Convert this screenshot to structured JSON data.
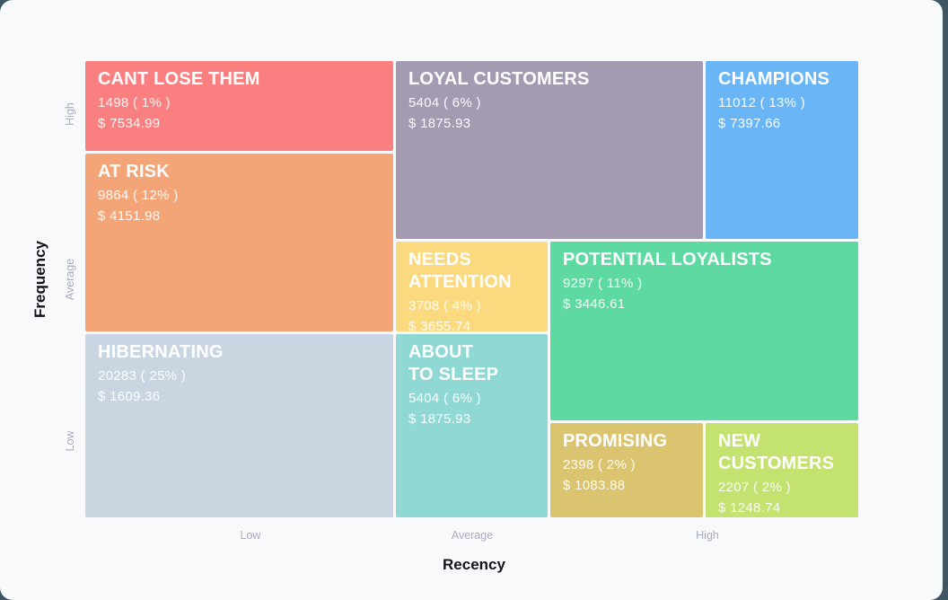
{
  "page": {
    "background_color": "#3E5763",
    "card_color": "#F8F9FB",
    "tick_color": "#A8ADBF",
    "axis_title_color": "#14141F"
  },
  "chart_data": {
    "type": "treemap",
    "xlabel": "Recency",
    "ylabel": "Frequency",
    "x_ticks": [
      "Low",
      "Average",
      "High"
    ],
    "y_ticks": [
      "High",
      "Average",
      "Low"
    ],
    "grid": false,
    "segments": [
      {
        "id": "cant-lose-them",
        "title_lines": [
          "CANT LOSE THEM"
        ],
        "count": 1498,
        "percent": "1%",
        "count_label": "1498 ( 1% )",
        "monetary": 7534.99,
        "monetary_label": "$ 7534.99",
        "color": "#F97F80",
        "recency": "Low",
        "frequency": "High",
        "grid": {
          "col": [
            1,
            2
          ],
          "row": [
            1,
            2
          ]
        }
      },
      {
        "id": "loyal-customers",
        "title_lines": [
          "LOYAL CUSTOMERS"
        ],
        "count": 5404,
        "percent": "6%",
        "count_label": "5404 ( 6% )",
        "monetary": 1875.93,
        "monetary_label": "$ 1875.93",
        "color": "#A49BB3",
        "recency": "Average",
        "frequency": "High",
        "grid": {
          "col": [
            2,
            4
          ],
          "row": [
            1,
            3
          ]
        }
      },
      {
        "id": "champions",
        "title_lines": [
          "CHAMPIONS"
        ],
        "count": 11012,
        "percent": "13%",
        "count_label": "11012 ( 13% )",
        "monetary": 7397.66,
        "monetary_label": "$ 7397.66",
        "color": "#6AB5F5",
        "recency": "High",
        "frequency": "High",
        "grid": {
          "col": [
            4,
            5
          ],
          "row": [
            1,
            3
          ]
        }
      },
      {
        "id": "at-risk",
        "title_lines": [
          "AT RISK"
        ],
        "count": 9864,
        "percent": "12%",
        "count_label": "9864 ( 12% )",
        "monetary": 4151.98,
        "monetary_label": "$ 4151.98",
        "color": "#F4A578",
        "recency": "Low",
        "frequency": "Average",
        "grid": {
          "col": [
            1,
            2
          ],
          "row": [
            2,
            4
          ]
        }
      },
      {
        "id": "needs-attention",
        "title_lines": [
          "NEEDS",
          "ATTENTION"
        ],
        "count": 3708,
        "percent": "4%",
        "count_label": "3708 ( 4% )",
        "monetary": 3655.74,
        "monetary_label": "$ 3655.74",
        "color": "#FBDA7F",
        "recency": "Average",
        "frequency": "Average",
        "grid": {
          "col": [
            2,
            3
          ],
          "row": [
            3,
            4
          ]
        }
      },
      {
        "id": "potential-loyalists",
        "title_lines": [
          "POTENTIAL LOYALISTS"
        ],
        "count": 9297,
        "percent": "11%",
        "count_label": "9297 ( 11% )",
        "monetary": 3446.61,
        "monetary_label": "$ 3446.61",
        "color": "#5DD9A1",
        "recency": "High",
        "frequency": "Average",
        "grid": {
          "col": [
            3,
            5
          ],
          "row": [
            3,
            5
          ]
        }
      },
      {
        "id": "hibernating",
        "title_lines": [
          "HIBERNATING"
        ],
        "count": 20283,
        "percent": "25%",
        "count_label": "20283 ( 25% )",
        "monetary": 1609.36,
        "monetary_label": "$ 1609.36",
        "color": "#CAD5E2",
        "recency": "Low",
        "frequency": "Low",
        "grid": {
          "col": [
            1,
            2
          ],
          "row": [
            4,
            6
          ]
        }
      },
      {
        "id": "about-to-sleep",
        "title_lines": [
          "ABOUT",
          "TO SLEEP"
        ],
        "count": 5404,
        "percent": "6%",
        "count_label": "5404 ( 6% )",
        "monetary": 1875.93,
        "monetary_label": "$ 1875.93",
        "color": "#8FD8D3",
        "recency": "Average",
        "frequency": "Low",
        "grid": {
          "col": [
            2,
            3
          ],
          "row": [
            4,
            6
          ]
        }
      },
      {
        "id": "promising",
        "title_lines": [
          "PROMISING"
        ],
        "count": 2398,
        "percent": "2%",
        "count_label": "2398 ( 2% )",
        "monetary": 1083.88,
        "monetary_label": "$ 1083.88",
        "color": "#DBC46F",
        "recency": "High",
        "frequency": "Low",
        "grid": {
          "col": [
            3,
            4
          ],
          "row": [
            5,
            6
          ]
        }
      },
      {
        "id": "new-customers",
        "title_lines": [
          "NEW",
          "CUSTOMERS"
        ],
        "count": 2207,
        "percent": "2%",
        "count_label": "2207 ( 2% )",
        "monetary": 1248.74,
        "monetary_label": "$ 1248.74",
        "color": "#C4E26F",
        "recency": "High",
        "frequency": "Low",
        "grid": {
          "col": [
            4,
            5
          ],
          "row": [
            5,
            6
          ]
        }
      }
    ]
  }
}
